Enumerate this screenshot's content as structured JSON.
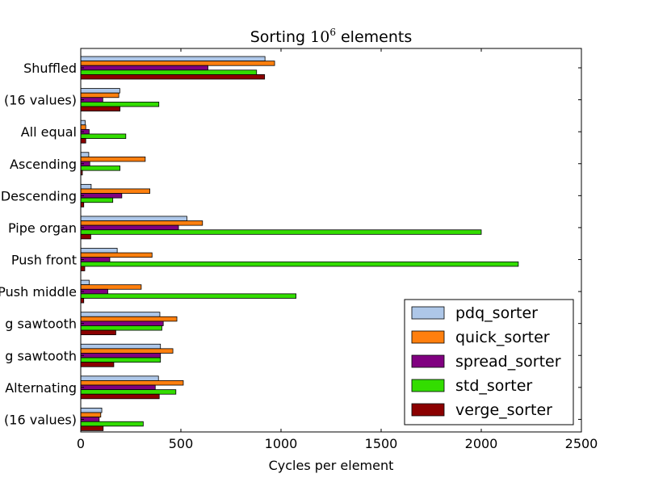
{
  "chart_data": {
    "type": "bar",
    "orientation": "horizontal",
    "title": "Sorting 10^6 elements",
    "title_parts": {
      "prefix": "Sorting ",
      "base": "10",
      "exponent": "6",
      "suffix": " elements"
    },
    "xlabel": "Cycles per element",
    "ylabel": "",
    "xlim": [
      0,
      2500
    ],
    "xticks": [
      0,
      500,
      1000,
      1500,
      2000,
      2500
    ],
    "categories": [
      "Shuffled",
      "(16 values)",
      "All equal",
      "Ascending",
      "Descending",
      "Pipe organ",
      "Push front",
      "Push middle",
      "g sawtooth",
      "g sawtooth",
      "Alternating",
      "(16 values)"
    ],
    "series": [
      {
        "name": "pdq_sorter",
        "color": "#aec7e8",
        "values": [
          920,
          195,
          22,
          40,
          52,
          530,
          182,
          42,
          395,
          398,
          388,
          105
        ]
      },
      {
        "name": "quick_sorter",
        "color": "#ff7f0e",
        "values": [
          968,
          190,
          25,
          322,
          345,
          608,
          356,
          302,
          480,
          460,
          512,
          100
        ]
      },
      {
        "name": "spread_sorter",
        "color": "#800080",
        "values": [
          635,
          110,
          42,
          45,
          205,
          488,
          145,
          135,
          412,
          398,
          372,
          92
        ]
      },
      {
        "name": "std_sorter",
        "color": "#33dd00",
        "values": [
          878,
          390,
          225,
          196,
          160,
          2000,
          2185,
          1075,
          405,
          398,
          475,
          312
        ]
      },
      {
        "name": "verge_sorter",
        "color": "#8b0000",
        "values": [
          918,
          196,
          25,
          8,
          15,
          50,
          20,
          15,
          175,
          165,
          392,
          112
        ]
      }
    ],
    "grid": false,
    "legend_position": "lower-right"
  }
}
